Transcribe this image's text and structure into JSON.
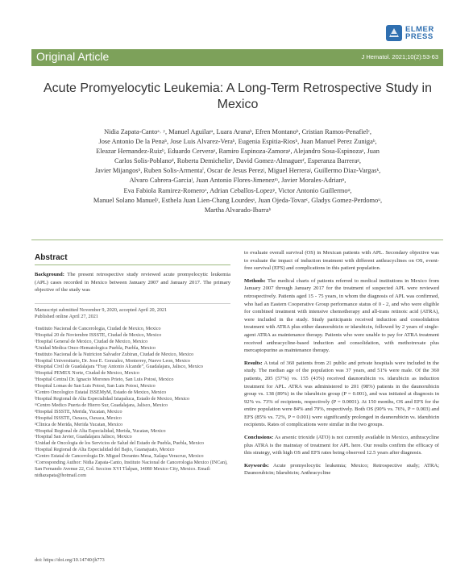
{
  "publisher": {
    "logo_line1": "ELMER",
    "logo_line2": "PRESS",
    "brand_color": "#2f6fb0"
  },
  "header": {
    "section": "Original Article",
    "citation": "J Hematol. 2021;10(2):53-63",
    "bar_color": "#7da15a"
  },
  "title": "Acute Promyelocytic Leukemia: A Long-Term Retrospective Study in Mexico",
  "authors_lines": [
    "Nidia Zapata-Cantoᵃ˒ ʸ, Manuel Aguilarᵃ, Luara Aranaᵇ, Efren Montanoᵇ, Cristian Ramos-Penafielᶜ,",
    "Jose Antonio De la Penaᵇ, Jose Luis Alvarez-Veraᵇ, Eugenia Espitia-Riosᵇ, Juan Manuel Perez Zunigaᵇ,",
    "Eleazar Hernandez-Ruizᵇ, Eduardo Cerveraᵃ, Ramiro Espinoza-Zamoraᵃ, Alejandro Sosa-Espinozaᵃ, Juan",
    "Carlos Solis-Poblanoᵈ, Roberta Demichelisᵉ, David Gomez-Almaguerᶠ, Esperanza Barreraᵍ,",
    "Javier Mijangosʰ, Ruben Solis-Armentaⁱ, Oscar de Jesus Perezʲ, Miguel Herreraʲ, Guillermo Diaz-Vargasᵏ,",
    "Alvaro Cabrera-Garciaˡ, Juan Antonio Flores-Jimenezᵐ, Javier Morales-Adrianⁿ,",
    "Eva Fabiola Ramirez-Romeroᵒ, Adrian Ceballos-Lopezᵖ, Victor Antonio Guillermoᵠ,",
    "Manuel Solano Manuelʳ, Esthela Juan Lien-Chang Lourdesˢ, Juan Ojeda-Tovarᶜ, Gladys Gomez-Perdomoᵘ,",
    "Martha Alvarado-Ibarraᵇ"
  ],
  "abstract": {
    "heading": "Abstract",
    "background_label": "Background:",
    "background_text": " The present retrospective study reviewed acute promyelocytic leukemia (APL) cases recorded in Mexico between January 2007 and January 2017. The primary objective of the study was",
    "background_cont": "to evaluate overall survival (OS) in Mexican patients with APL. Secondary objective was to evaluate the impact of induction treatment with different anthracyclines on OS, event-free survival (EFS) and complications in this patient population.",
    "methods_label": "Methods:",
    "methods_text": " The medical charts of patients referred to medical institutions in Mexico from January 2007 through January 2017 for the treatment of suspected APL were reviewed retrospectively. Patients aged 15 - 75 years, in whom the diagnosis of APL was confirmed, who had an Eastern Cooperative Group performance status of 0 - 2, and who were eligible for combined treatment with intensive chemotherapy and all-trans retinoic acid (ATRA), were included in the study. Study participants received induction and consolidation treatment with ATRA plus either daunorubicin or idarubicin, followed by 2 years of single-agent ATRA as maintenance therapy. Patients who were unable to pay for ATRA treatment received anthracycline-based induction and consolidation, with methotrexate plus mercaptopurine as maintenance therapy.",
    "results_label": "Results:",
    "results_text": " A total of 360 patients from 21 public and private hospitals were included in the study. The median age of the population was 37 years, and 51% were male. Of the 360 patients, 205 (57%) vs. 155 (43%) received daunorubicin vs. idarubicin as induction treatment for APL. ATRA was administered to 201 (98%) patients in the daunorubicin group vs. 138 (89%) in the idarubicin group (P = 0.001), and was initiated at diagnosis in 92% vs. 73% of recipients, respectively (P = 0.0001). At 150 months, OS and EFS for the entire population were 84% and 79%, respectively. Both OS (90% vs. 76%, P = 0.003) and EFS (85% vs. 72%, P = 0.001) were significantly prolonged in daunorubicin vs. idarubicin recipients. Rates of complications were similar in the two groups.",
    "conclusions_label": "Conclusions:",
    "conclusions_text": " As arsenic trioxide (ATO) is not currently available in Mexico, anthracycline plus ATRA is the mainstay of treatment for APL here. Our results confirm the efficacy of this strategy, with high OS and EFS rates being observed 12.5 years after diagnosis.",
    "keywords_label": "Keywords:",
    "keywords_text": " Acute promyelocytic leukemia; Mexico; Retrospective study; ATRA; Daunorubicin; Idarubicin; Anthracycline"
  },
  "manuscript": {
    "submitted": "Manuscript submitted November 9, 2020, accepted April 20, 2021",
    "published": "Published online April 27, 2021"
  },
  "affiliations": [
    "ᵃInstituto Nacional de Cancerologia, Ciudad de Mexico, Mexico",
    "ᵇHospital 20 de Noviembre ISSSTE, Ciudad de Mexico, Mexico",
    "ᶜHospital General de Mexico, Ciudad de Mexico, Mexico",
    "ᵈUnidad Medica Onco-Hematologica Puebla, Puebla, Mexico",
    "ᵉInstituto Nacional de la Nutricion Salvador Zubiran, Ciudad de Mexico, Mexico",
    "ᶠHospital Universitario, Dr. Jose E. Gonzalez, Monterrey, Nuevo Leon, Mexico",
    "ᵍHospital Civil de Guadalajara “Fray Antonio Alcande”, Guadalajara, Jalisco, Mexico",
    "ʰHospital PEMEX Norte, Ciudad de Mexico, Mexico",
    "ⁱHospital Central Dr. Ignacio Morones Prieto, San Luis Potosi, Mexico",
    "ʲHospital Lomas de San Luis Potosi, San Luis Potosi, Mexico",
    "ᵏCentro Oncologico Estatal ISSEMyM, Estado de Mexico, Mexico",
    "ˡHospital Regional de Alta Especialidad Iztapaluca, Estado de Mexico, Mexico",
    "ᵐCentro Medico Puerta de Hierro Sur, Guadalajara, Jalisco, Mexico",
    "ⁿHospital ISSSTE, Merida, Yucatan, Mexico",
    "ᵒHospital ISSSTE, Oaxaca, Oaxaca, Mexico",
    "ᵖClinica de Merida, Merida Yucatan, Mexico",
    "ᵠHospital Regional de Alta Especialidad, Merida, Yucatan, Mexico",
    "ʳHospital San Javier, Guadalajara Jalisco, Mexico",
    "ˢUnidad de Oncologia de los Servicios de Salud del Estado de Puebla, Puebla, Mexico",
    "ᵗHospital Regional de Alta Especialidad del Bajio, Guanajuato, Mexico",
    "ᵘCentro Estatal de Cancerologia Dr. Miguel Dorantes Mesa, Xalapa Veracruz, Mexico",
    "ʸCorresponding Author: Nidia Zapata-Canto, Instituto Nacional de Cancerologia Mexico (INCan), San Fernando Avenue 22, Col. Seccion XVI Tlalpan, 14080 Mexico City, Mexico. Email: nidiazapata@hotmail.com"
  ],
  "doi": "doi: https://doi.org/10.14740/jh773"
}
